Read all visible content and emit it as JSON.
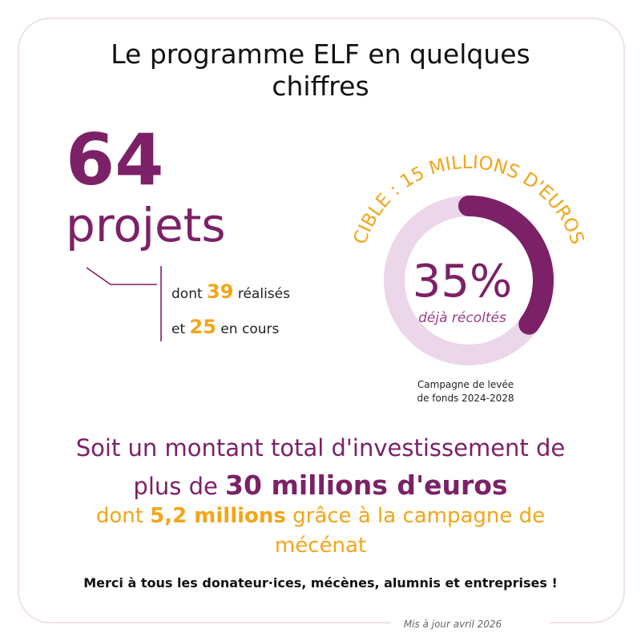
{
  "title": "Le programme ELF en quelques chiffres",
  "projects": {
    "total": "64",
    "total_label": "projets",
    "detail_prefix_1": "dont ",
    "completed": "39",
    "detail_suffix_1": " réalisés",
    "detail_prefix_2": "et ",
    "ongoing": "25",
    "detail_suffix_2": " en cours"
  },
  "campaign": {
    "target_label": "CIBLE : 15 MILLIONS D'EUROS",
    "percent_text": "35%",
    "percent_value": 35,
    "collected_label": "déjà récoltés",
    "caption_line1": "Campagne de levée",
    "caption_line2": "de fonds 2024-2028"
  },
  "summary": {
    "line1": "Soit un montant total d'investissement de",
    "line2_prefix": "plus de ",
    "line2_strong": "30 millions d'euros",
    "line3_prefix": "dont ",
    "line3_strong": "5,2 millions",
    "line3_suffix": " grâce à la campagne de mécénat"
  },
  "thanks": "Merci à tous les donateur·ices, mécènes, alumnis et entreprises !",
  "footer": "Mis à jour avril 2026",
  "colors": {
    "purple": "#7c2167",
    "orange": "#f3a519",
    "light_purple": "#ecd6ea",
    "frame": "#f1e0ee"
  }
}
